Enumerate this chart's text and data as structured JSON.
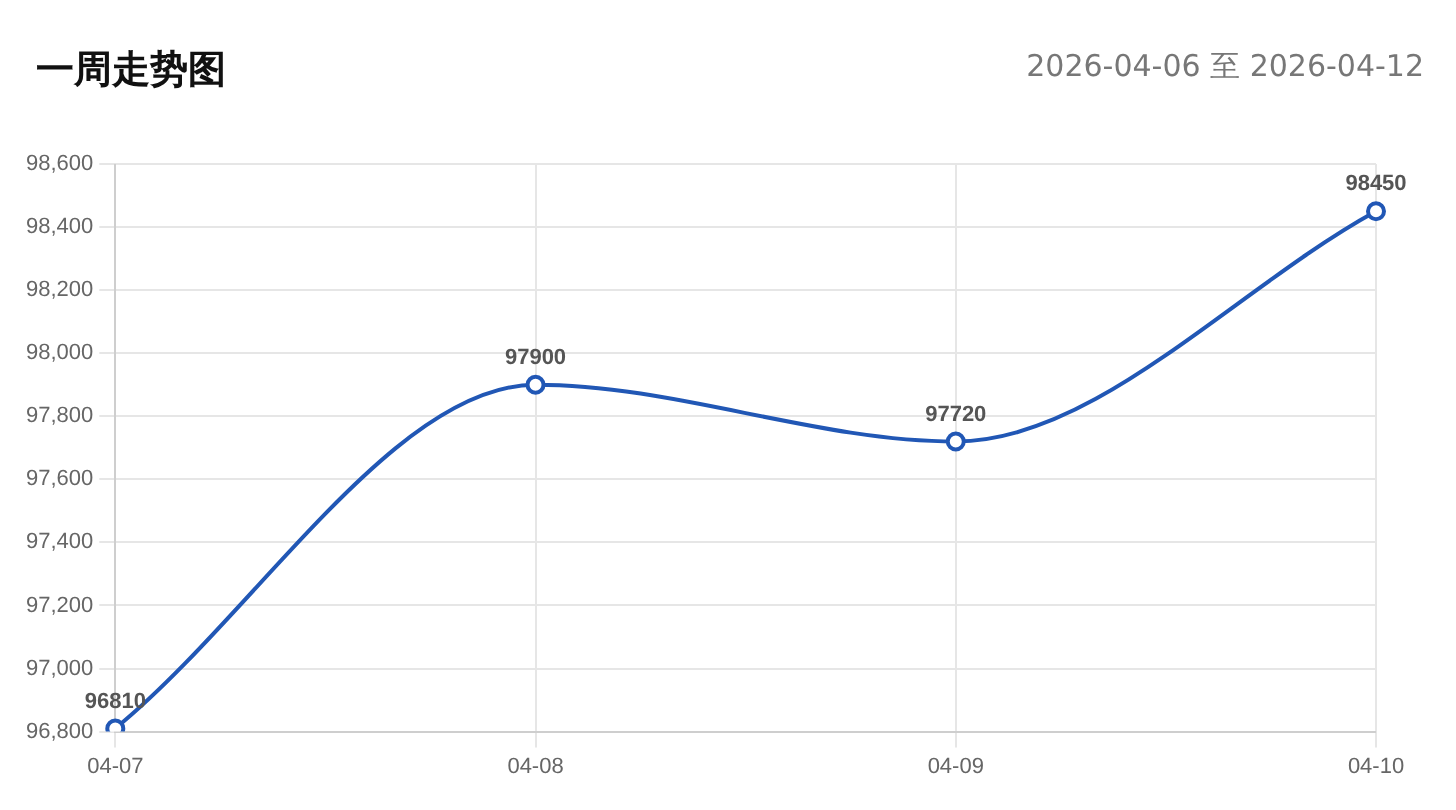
{
  "chart_data": {
    "type": "line",
    "title": "一周走势图",
    "subtitle": "2026-04-06 至 2026-04-12",
    "categories": [
      "04-07",
      "04-08",
      "04-09",
      "04-10"
    ],
    "series": [
      {
        "color": "#2157b5",
        "values": [
          96810,
          97900,
          97720,
          98450
        ]
      }
    ],
    "ylim": [
      96800,
      98600
    ],
    "yticks": [
      {
        "value": 96800,
        "label": "96,800"
      },
      {
        "value": 97000,
        "label": "97,000"
      },
      {
        "value": 97200,
        "label": "97,200"
      },
      {
        "value": 97400,
        "label": "97,400"
      },
      {
        "value": 97600,
        "label": "97,600"
      },
      {
        "value": 97800,
        "label": "97,800"
      },
      {
        "value": 98000,
        "label": "98,000"
      },
      {
        "value": 98200,
        "label": "98,200"
      },
      {
        "value": 98400,
        "label": "98,400"
      },
      {
        "value": 98600,
        "label": "98,600"
      }
    ],
    "grid": true,
    "legend": false,
    "marker": "circle",
    "line_style": "solid",
    "data_labels": true
  }
}
